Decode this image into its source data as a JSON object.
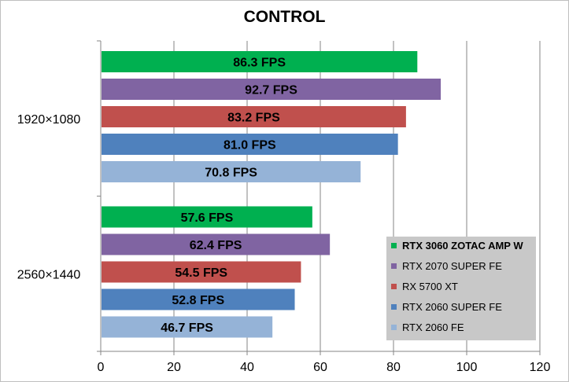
{
  "chart_data": {
    "type": "bar",
    "orientation": "horizontal",
    "title": "CONTROL",
    "categories": [
      "1920×1080",
      "2560×1440"
    ],
    "series": [
      {
        "name": "RTX 3060 ZOTAC AMP W",
        "color": "#00b050",
        "values": [
          86.3,
          57.6
        ],
        "labels": [
          "86.3 FPS",
          "57.6 FPS"
        ]
      },
      {
        "name": "RTX 2070 SUPER FE",
        "color": "#8064a2",
        "values": [
          92.7,
          62.4
        ],
        "labels": [
          "92.7 FPS",
          "62.4 FPS"
        ]
      },
      {
        "name": "RX 5700 XT",
        "color": "#c0504d",
        "values": [
          83.2,
          54.5
        ],
        "labels": [
          "83.2 FPS",
          "54.5 FPS"
        ]
      },
      {
        "name": "RTX 2060 SUPER FE",
        "color": "#4f81bd",
        "values": [
          81.0,
          52.8
        ],
        "labels": [
          "81.0 FPS",
          "52.8 FPS"
        ]
      },
      {
        "name": "RTX 2060 FE",
        "color": "#95b3d7",
        "values": [
          70.8,
          46.7
        ],
        "labels": [
          "70.8 FPS",
          "46.7 FPS"
        ]
      }
    ],
    "xlim": [
      0,
      120
    ],
    "xticks": [
      "0",
      "20",
      "40",
      "60",
      "80",
      "100",
      "120"
    ],
    "grid": true,
    "legend_position": "bottom-right"
  }
}
